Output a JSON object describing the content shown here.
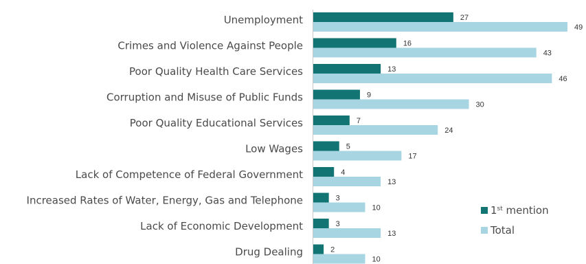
{
  "chart_data": {
    "type": "bar",
    "orientation": "horizontal",
    "categories": [
      "Unemployment",
      "Crimes and Violence Against People",
      "Poor Quality Health Care Services",
      "Corruption and Misuse of Public Funds",
      "Poor Quality Educational Services",
      "Low Wages",
      "Lack of Competence of Federal Government",
      "Increased Rates of Water, Energy, Gas and Telephone",
      "Lack of Economic Development",
      "Drug Dealing"
    ],
    "series": [
      {
        "name": "1st mention",
        "color": "#137474",
        "values": [
          27,
          16,
          13,
          9,
          7,
          5,
          4,
          3,
          3,
          2
        ]
      },
      {
        "name": "Total",
        "color": "#a7d6e2",
        "values": [
          49,
          43,
          46,
          30,
          24,
          17,
          13,
          10,
          13,
          10
        ]
      }
    ],
    "xlim": [
      0,
      49
    ],
    "grid": false,
    "legend": {
      "placement": "bottom-right",
      "entries": [
        {
          "base": "1",
          "sup": "st",
          "rest": " mention"
        },
        {
          "base": "Total",
          "sup": "",
          "rest": ""
        }
      ]
    }
  }
}
